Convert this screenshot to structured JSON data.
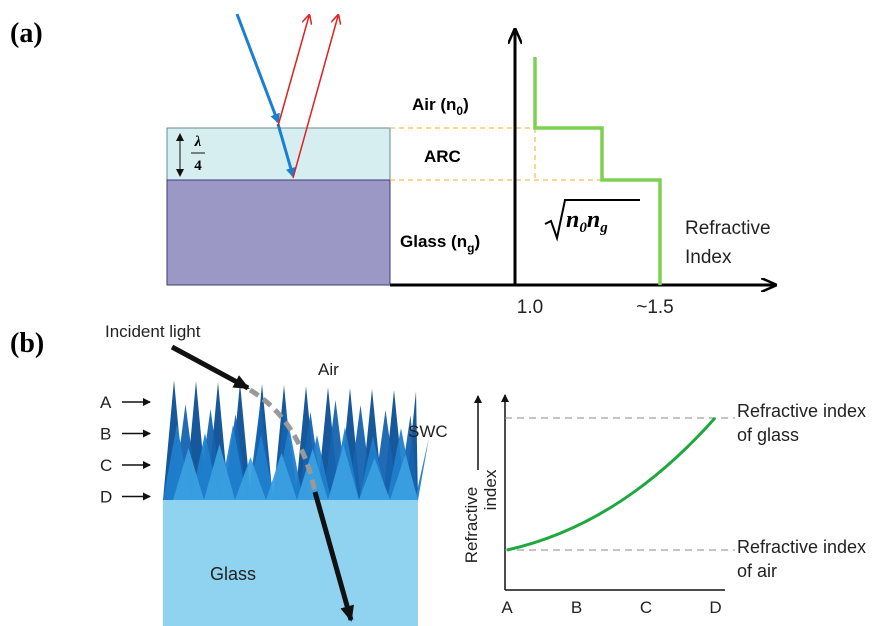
{
  "panel_a": {
    "label": "(a)",
    "lambda": {
      "symbol": "λ",
      "denominator": "4"
    },
    "air": {
      "main": "Air (n",
      "sub": "0",
      "end": ")"
    },
    "arc": "ARC",
    "glass": {
      "main": "Glass (n",
      "sub": "g",
      "end": ")"
    },
    "formula": {
      "n1": "n",
      "s1": "0",
      "n2": "n",
      "s2": "g"
    },
    "axis_label": [
      "Refractive",
      "Index"
    ],
    "x_ticks": [
      "1.0",
      "~1.5"
    ]
  },
  "panel_b": {
    "label": "(b)",
    "incident": "Incident light",
    "air": "Air",
    "swc": "SWC",
    "glass": "Glass",
    "levels": [
      "A",
      "B",
      "C",
      "D"
    ],
    "y_axis_label": [
      "Refractive",
      "index"
    ],
    "glass_index": [
      "Refractive index",
      "of glass"
    ],
    "air_index": [
      "Refractive index",
      "of air"
    ],
    "x_ticks": [
      "A",
      "B",
      "C",
      "D"
    ]
  }
}
